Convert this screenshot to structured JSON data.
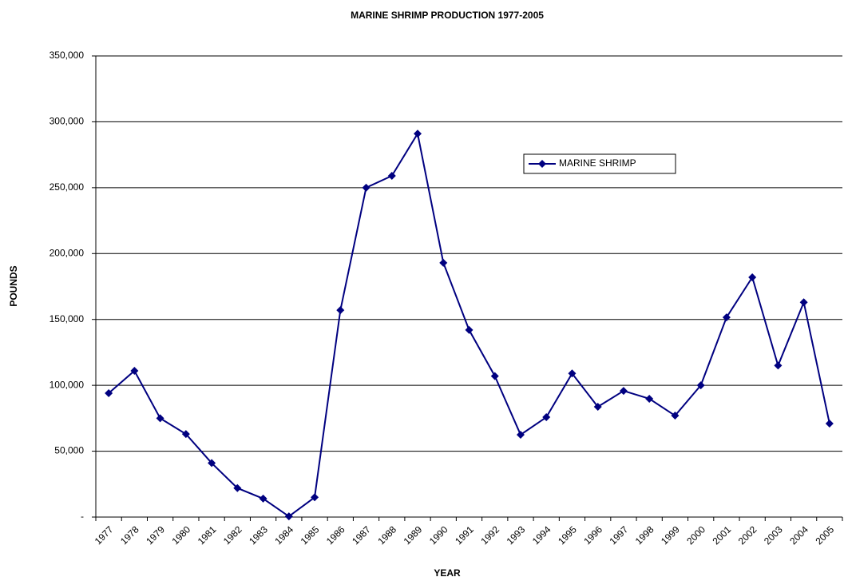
{
  "chart_data": {
    "type": "line",
    "title": "MARINE SHRIMP PRODUCTION 1977-2005",
    "x_label": "YEAR",
    "y_label": "POUNDS",
    "categories": [
      "1977",
      "1978",
      "1979",
      "1980",
      "1981",
      "1982",
      "1983",
      "1984",
      "1985",
      "1986",
      "1987",
      "1988",
      "1989",
      "1990",
      "1991",
      "1992",
      "1993",
      "1994",
      "1995",
      "1996",
      "1997",
      "1998",
      "1999",
      "2000",
      "2001",
      "2002",
      "2003",
      "2004",
      "2005"
    ],
    "series": [
      {
        "name": "MARINE SHRIMP",
        "color": "#000080",
        "values": [
          94000,
          111000,
          75000,
          63000,
          41000,
          22000,
          14000,
          500,
          15000,
          157000,
          250000,
          259000,
          291000,
          193000,
          142000,
          107000,
          62500,
          75800,
          109000,
          83700,
          95800,
          89800,
          77000,
          100000,
          151600,
          182000,
          115000,
          163000,
          71000
        ]
      }
    ],
    "ylim": [
      0,
      350000
    ],
    "yticks": [
      {
        "value": 0,
        "label": "-"
      },
      {
        "value": 50000,
        "label": "50,000"
      },
      {
        "value": 100000,
        "label": "100,000"
      },
      {
        "value": 150000,
        "label": "150,000"
      },
      {
        "value": 200000,
        "label": "200,000"
      },
      {
        "value": 250000,
        "label": "250,000"
      },
      {
        "value": 300000,
        "label": "300,000"
      },
      {
        "value": 350000,
        "label": "350,000"
      }
    ],
    "grid": true
  }
}
